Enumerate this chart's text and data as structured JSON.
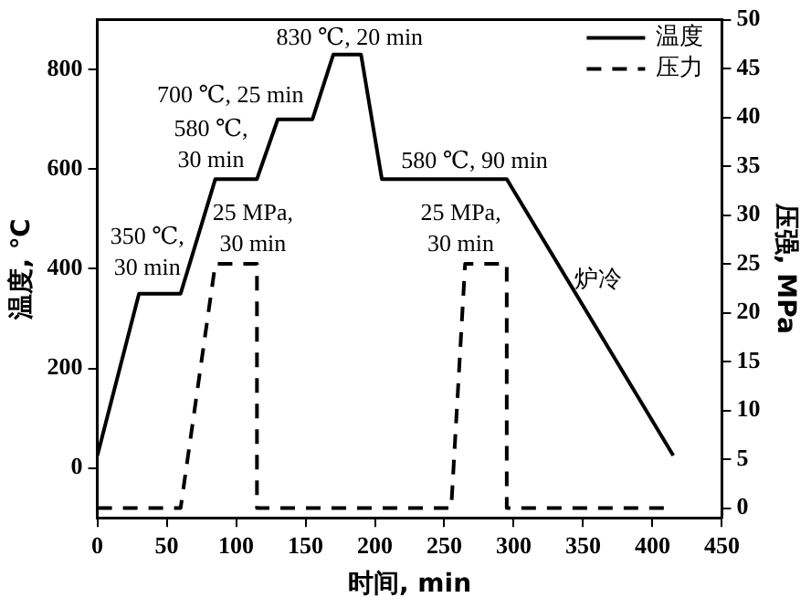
{
  "chart_data": {
    "type": "line",
    "xlabel": "时间, min",
    "ylabel": "温度, ℃",
    "y2label": "压强, MPa",
    "xlim": [
      0,
      450
    ],
    "xticks": [
      0,
      50,
      100,
      150,
      200,
      250,
      300,
      350,
      400,
      450
    ],
    "ylim": [
      -100,
      900
    ],
    "yticks": [
      0,
      200,
      400,
      600,
      800
    ],
    "y2lim": [
      -1,
      50
    ],
    "y2ticks": [
      0,
      5,
      10,
      15,
      20,
      25,
      30,
      35,
      40,
      45,
      50
    ],
    "grid": false,
    "legend": "top right",
    "marker": "none",
    "series": [
      {
        "name": "温度",
        "color": "#000000",
        "line_style": "solid",
        "x": [
          0,
          30,
          60,
          85,
          115,
          130,
          155,
          170,
          190,
          205,
          295,
          415
        ],
        "values": [
          25,
          350,
          350,
          580,
          580,
          700,
          700,
          830,
          830,
          580,
          580,
          25
        ]
      },
      {
        "name": "压力",
        "color": "#000000",
        "line_style": "dashed",
        "axis": "y2",
        "x": [
          0,
          60,
          85,
          115,
          115,
          255,
          265,
          295,
          295,
          410
        ],
        "values": [
          0,
          0,
          25,
          25,
          0,
          0,
          25,
          25,
          0,
          0
        ]
      }
    ],
    "annotations": [
      "350 ℃,\n30 min",
      "580 ℃,\n30 min",
      "700 ℃, 25 min",
      "830 ℃, 20 min",
      "25 MPa,\n30 min",
      "580 ℃, 90 min",
      "25 MPa,\n30 min",
      "炉冷"
    ]
  }
}
